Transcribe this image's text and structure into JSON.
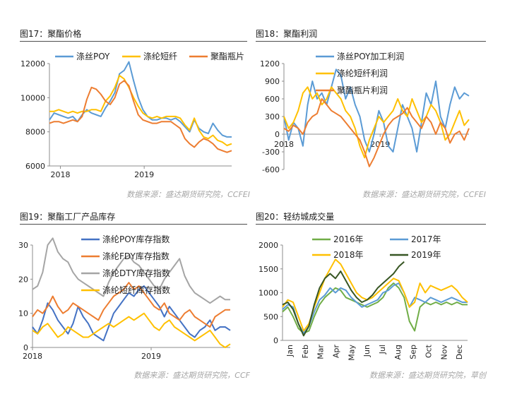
{
  "figures": [
    {
      "title": "图17：聚酯价格",
      "source": "数据来源：盛达期货研究院，CCFEI"
    },
    {
      "title": "图18：聚酯利润",
      "source": "数据来源：盛达期货研究院，CCFEI"
    },
    {
      "title": "图19：聚酯工厂产品库存",
      "source": "数据来源：盛达期货研究院，CCF"
    },
    {
      "title": "图20：轻纺城成交量",
      "source": "数据来源：盛达期货研究院，草创"
    }
  ],
  "chart_data": [
    {
      "type": "line",
      "title": "图17：聚酯价格",
      "ylim": [
        6000,
        12000
      ],
      "yticks": [
        6000,
        8000,
        10000,
        12000
      ],
      "xticks": [
        "2018",
        "2019"
      ],
      "series": [
        {
          "name": "涤丝POY",
          "color": "#5b9bd5",
          "values": [
            8700,
            9100,
            9000,
            8900,
            8800,
            8900,
            8600,
            9000,
            9300,
            9100,
            9000,
            8900,
            9400,
            9800,
            10300,
            11400,
            11600,
            12100,
            11000,
            10000,
            9300,
            8900,
            8700,
            8700,
            8800,
            8800,
            8700,
            8800,
            8600,
            8300,
            8000,
            8700,
            8200,
            8000,
            7900,
            8500,
            8100,
            7800,
            7700,
            7700
          ]
        },
        {
          "name": "涤纶短纤",
          "color": "#ffc000",
          "values": [
            9200,
            9200,
            9300,
            9200,
            9100,
            9200,
            9100,
            9200,
            9200,
            9300,
            9300,
            9200,
            9800,
            10100,
            10600,
            11300,
            11100,
            10600,
            10000,
            9500,
            9100,
            8900,
            8800,
            8900,
            8800,
            8900,
            8900,
            8900,
            8800,
            8400,
            8100,
            8800,
            8100,
            7700,
            7600,
            7800,
            7500,
            7400,
            7200,
            7300
          ]
        },
        {
          "name": "聚酯瓶片",
          "color": "#ed7d31",
          "values": [
            8500,
            8600,
            8600,
            8500,
            8600,
            8700,
            8600,
            8900,
            9900,
            10600,
            10500,
            10200,
            9800,
            9600,
            10000,
            10800,
            11000,
            10700,
            9800,
            9000,
            8700,
            8600,
            8500,
            8500,
            8600,
            8600,
            8600,
            8400,
            8200,
            7600,
            7300,
            7100,
            7400,
            7600,
            7500,
            7300,
            7000,
            6900,
            6800,
            6900
          ]
        }
      ]
    },
    {
      "type": "line",
      "title": "图18：聚酯利润",
      "ylim": [
        -600,
        1200
      ],
      "yticks": [
        -600,
        -300,
        0,
        300,
        600,
        900,
        1200
      ],
      "xticks": [
        "2018",
        "2019"
      ],
      "series": [
        {
          "name": "涤丝POY加工利润",
          "color": "#5b9bd5",
          "values": [
            300,
            -100,
            200,
            100,
            -200,
            500,
            900,
            600,
            700,
            500,
            800,
            1100,
            1000,
            600,
            800,
            500,
            300,
            -100,
            -300,
            0,
            400,
            200,
            -200,
            -300,
            100,
            500,
            300,
            100,
            -300,
            200,
            700,
            500,
            900,
            300,
            100,
            500,
            800,
            600,
            700,
            650
          ]
        },
        {
          "name": "涤纶短纤利润",
          "color": "#ffc000",
          "values": [
            300,
            100,
            200,
            400,
            700,
            800,
            600,
            700,
            500,
            600,
            800,
            700,
            600,
            400,
            300,
            100,
            -200,
            -400,
            -100,
            100,
            300,
            200,
            300,
            400,
            600,
            400,
            300,
            600,
            400,
            200,
            300,
            500,
            400,
            200,
            -100,
            0,
            200,
            400,
            150,
            250
          ]
        },
        {
          "name": "聚酯瓶片利润",
          "color": "#ed7d31",
          "values": [
            100,
            50,
            150,
            100,
            0,
            200,
            300,
            350,
            600,
            500,
            400,
            350,
            300,
            200,
            100,
            0,
            -100,
            -300,
            -550,
            -400,
            -200,
            0,
            150,
            250,
            300,
            350,
            450,
            300,
            200,
            100,
            300,
            200,
            0,
            200,
            100,
            -150,
            0,
            50,
            -100,
            100
          ]
        }
      ]
    },
    {
      "type": "line",
      "title": "图19：聚酯工厂产品库存",
      "ylim": [
        0,
        30
      ],
      "yticks": [
        0,
        10,
        20,
        30
      ],
      "xticks": [
        "2018",
        "2019"
      ],
      "series": [
        {
          "name": "涤纶POY库存指数",
          "color": "#4472c4",
          "values": [
            6,
            4,
            8,
            13,
            11,
            8,
            6,
            4,
            7,
            12,
            9,
            7,
            4,
            3,
            2,
            6,
            10,
            12,
            14,
            16,
            15,
            17,
            18,
            16,
            14,
            12,
            9,
            12,
            10,
            8,
            6,
            4,
            3,
            5,
            6,
            8,
            5,
            6,
            6,
            5
          ]
        },
        {
          "name": "涤纶FDY库存指数",
          "color": "#ed7d31",
          "values": [
            9,
            11,
            10,
            12,
            15,
            12,
            10,
            11,
            13,
            12,
            11,
            10,
            9,
            8,
            11,
            13,
            15,
            16,
            17,
            19,
            17,
            18,
            16,
            14,
            12,
            11,
            13,
            10,
            9,
            8,
            10,
            11,
            9,
            8,
            7,
            6,
            9,
            10,
            11,
            11
          ]
        },
        {
          "name": "涤纶DTY库存指数",
          "color": "#a5a5a5",
          "values": [
            17,
            18,
            22,
            30,
            32,
            28,
            26,
            25,
            22,
            20,
            19,
            18,
            17,
            16,
            15,
            19,
            22,
            24,
            26,
            27,
            25,
            24,
            22,
            20,
            18,
            17,
            20,
            22,
            24,
            26,
            21,
            18,
            16,
            15,
            14,
            13,
            14,
            15,
            14,
            14
          ]
        },
        {
          "name": "涤纶短纤库存指数",
          "color": "#ffc000",
          "values": [
            5,
            4,
            6,
            7,
            5,
            3,
            4,
            6,
            5,
            4,
            3,
            3,
            4,
            5,
            6,
            7,
            6,
            7,
            8,
            9,
            8,
            9,
            10,
            8,
            6,
            5,
            7,
            8,
            6,
            5,
            4,
            3,
            2,
            3,
            4,
            5,
            3,
            1,
            0,
            1
          ]
        }
      ]
    },
    {
      "type": "line",
      "title": "图20：轻纺城成交量",
      "ylim": [
        0,
        2000
      ],
      "yticks": [
        0,
        500,
        1000,
        1500,
        2000
      ],
      "xticks": [
        "Jan",
        "Feb",
        "Mar",
        "Apr",
        "May",
        "Jun",
        "Jul",
        "Aug",
        "Sep",
        "Oct",
        "Nov",
        "Dec"
      ],
      "series": [
        {
          "name": "2016年",
          "color": "#70ad47",
          "values": [
            600,
            700,
            500,
            250,
            150,
            200,
            500,
            750,
            900,
            1000,
            1100,
            1050,
            900,
            850,
            800,
            750,
            700,
            750,
            800,
            900,
            1100,
            1200,
            1100,
            900,
            400,
            200,
            700,
            800,
            750,
            800,
            750,
            800,
            750,
            800,
            750,
            750
          ]
        },
        {
          "name": "2017年",
          "color": "#5b9bd5",
          "values": [
            650,
            750,
            700,
            350,
            150,
            300,
            600,
            850,
            950,
            1100,
            1000,
            1100,
            1050,
            900,
            800,
            700,
            750,
            800,
            850,
            1000,
            1050,
            1150,
            1200,
            1000,
            700,
            900,
            850,
            800,
            900,
            850,
            800,
            850,
            900,
            850,
            800,
            800
          ]
        },
        {
          "name": "2018年",
          "color": "#ffc000",
          "values": [
            700,
            850,
            800,
            500,
            200,
            350,
            700,
            1000,
            1300,
            1500,
            1700,
            1600,
            1400,
            1200,
            1000,
            900,
            850,
            900,
            1000,
            1100,
            1200,
            1300,
            1250,
            1000,
            700,
            800,
            1200,
            1000,
            1150,
            1100,
            1050,
            1100,
            1150,
            1050,
            900,
            800
          ]
        },
        {
          "name": "2019年",
          "color": "#375623",
          "values": [
            750,
            800,
            650,
            350,
            100,
            300,
            750,
            1100,
            1300,
            1400,
            1300,
            1450,
            1250,
            1050,
            900,
            800,
            850,
            950,
            1100,
            1200,
            1300,
            1400,
            1550,
            1650,
            null,
            null,
            null,
            null,
            null,
            null,
            null,
            null,
            null,
            null,
            null,
            null
          ]
        }
      ]
    }
  ]
}
